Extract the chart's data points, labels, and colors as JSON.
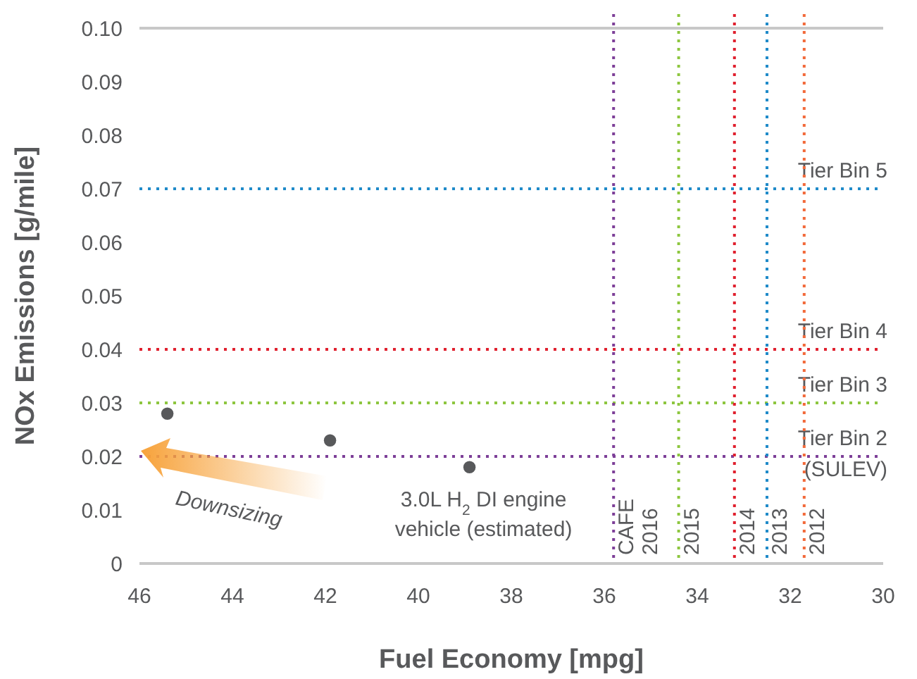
{
  "chart_data": {
    "type": "scatter",
    "xlabel": "Fuel Economy [mpg]",
    "ylabel": "NOx Emissions [g/mile]",
    "x": [
      45.4,
      41.9,
      38.9
    ],
    "values": [
      0.028,
      0.023,
      0.018
    ],
    "color": "#58595b",
    "marker": "circle",
    "xlim": [
      46,
      30
    ],
    "xticks": [
      46,
      44,
      42,
      40,
      38,
      36,
      34,
      32,
      30
    ],
    "ylim": [
      0,
      0.1
    ],
    "yticks": [
      {
        "value": 0,
        "label": "0"
      },
      0.01,
      0.02,
      0.03,
      0.04,
      0.05,
      0.06,
      0.07,
      0.08,
      0.09,
      {
        "value": 0.1,
        "label": "0.10"
      }
    ],
    "grid": false,
    "ref_lines": [
      {
        "axis": "y",
        "value": 0.07,
        "label": "Tier Bin 5",
        "color": "#1f8ac9",
        "line_style": "dotted"
      },
      {
        "axis": "y",
        "value": 0.04,
        "label": "Tier Bin 4",
        "color": "#e0202e",
        "line_style": "dotted"
      },
      {
        "axis": "y",
        "value": 0.03,
        "label": "Tier Bin 3",
        "color": "#8dc63f",
        "line_style": "dotted"
      },
      {
        "axis": "y",
        "value": 0.02,
        "label": "Tier Bin 2\n(SULEV)",
        "color": "#7d3f98",
        "line_style": "dotted"
      },
      {
        "axis": "x",
        "value": 35.8,
        "label": "CAFE\n2016",
        "color": "#7d3f98",
        "line_style": "dotted"
      },
      {
        "axis": "x",
        "value": 34.4,
        "color": "#8dc63f",
        "line_style": "dotted"
      },
      {
        "axis": "x",
        "value": 33.2,
        "color": "#e0202e",
        "line_style": "dotted"
      },
      {
        "axis": "x",
        "value": 32.5,
        "color": "#1f8ac9",
        "line_style": "dotted"
      },
      {
        "axis": "x",
        "value": 31.7,
        "color": "#f26a3a",
        "line_style": "dotted"
      }
    ],
    "annotations": [
      "Downsizing",
      {
        "text": "3.0L H$_{2}$ DI engine\nvehicle (estimated)",
        "x": 38.9,
        "y": 0.018
      },
      {
        "text": "2015",
        "x": 34.4,
        "y": 0
      },
      {
        "text": "2014",
        "x": 33.2,
        "y": 0
      },
      {
        "text": "2013",
        "x": 32.5,
        "y": 0
      },
      {
        "text": "2012",
        "x": 31.7,
        "y": 0
      }
    ]
  }
}
